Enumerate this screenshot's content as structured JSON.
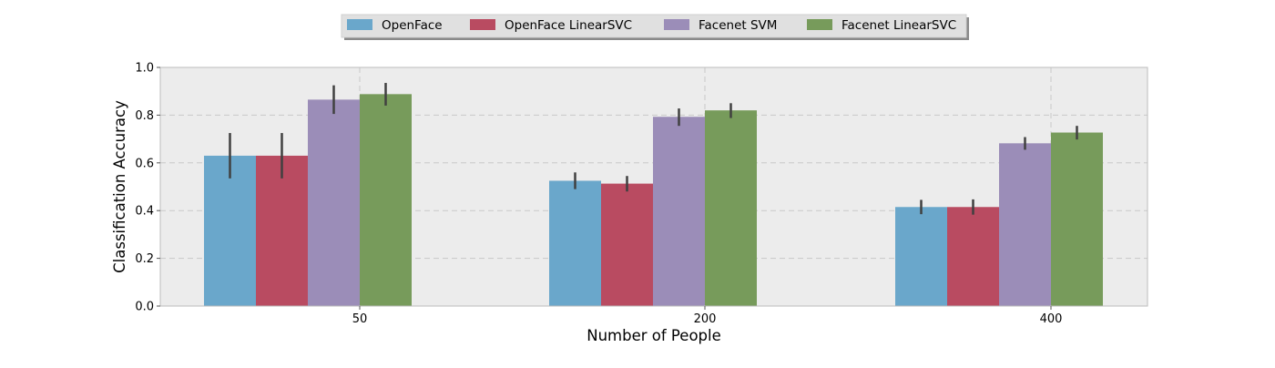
{
  "chart_data": {
    "type": "bar",
    "title": "",
    "xlabel": "Number of People",
    "ylabel": "Classification Accuracy",
    "categories": [
      "50",
      "200",
      "400"
    ],
    "ylim": [
      0,
      1.0
    ],
    "yticks": [
      "0.0",
      "0.2",
      "0.4",
      "0.6",
      "0.8",
      "1.0"
    ],
    "grid": true,
    "legend_position": "top-center",
    "series": [
      {
        "name": "OpenFace",
        "color": "#6aa7cb",
        "values": [
          0.63,
          0.525,
          0.415
        ],
        "error": [
          [
            0.535,
            0.725
          ],
          [
            0.49,
            0.56
          ],
          [
            0.385,
            0.445
          ]
        ]
      },
      {
        "name": "OpenFace LinearSVC",
        "color": "#b94b61",
        "values": [
          0.63,
          0.513,
          0.415
        ],
        "error": [
          [
            0.535,
            0.725
          ],
          [
            0.48,
            0.545
          ],
          [
            0.383,
            0.447
          ]
        ]
      },
      {
        "name": "Facenet SVM",
        "color": "#9b8db8",
        "values": [
          0.865,
          0.793,
          0.682
        ],
        "error": [
          [
            0.805,
            0.925
          ],
          [
            0.755,
            0.828
          ],
          [
            0.655,
            0.708
          ]
        ]
      },
      {
        "name": "Facenet LinearSVC",
        "color": "#779b5b",
        "values": [
          0.888,
          0.82,
          0.727
        ],
        "error": [
          [
            0.84,
            0.935
          ],
          [
            0.788,
            0.85
          ],
          [
            0.698,
            0.755
          ]
        ]
      }
    ]
  },
  "colors": {
    "plot_background": "#ececec",
    "grid": "#c8c8c8",
    "frame": "#bdbdbd",
    "error_bar": "#404040",
    "legend_background": "#e0e0e0"
  }
}
